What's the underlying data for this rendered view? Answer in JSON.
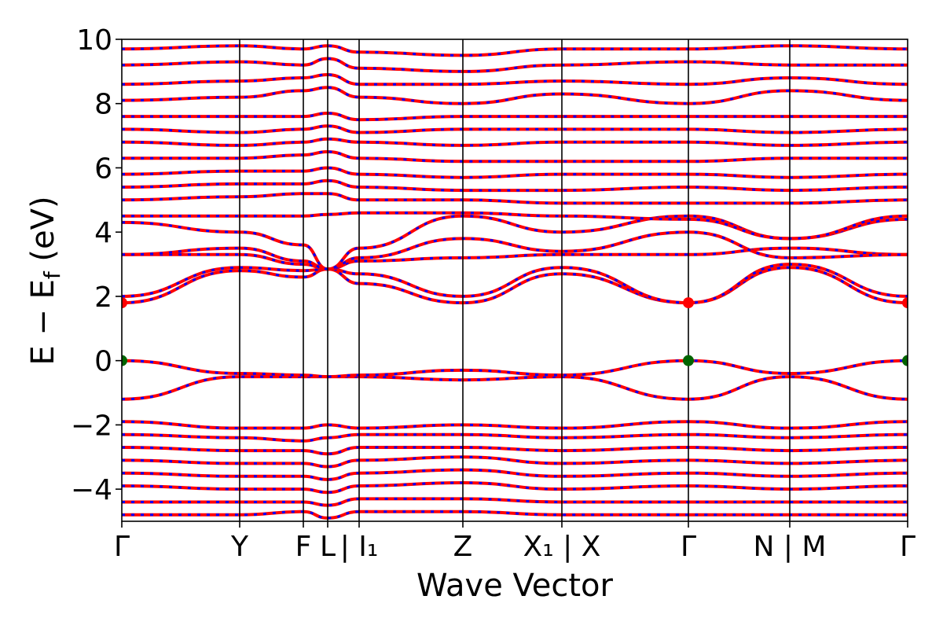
{
  "chart_data": {
    "type": "line",
    "title": "",
    "xlabel": "Wave Vector",
    "ylabel": "E − Ef",
    "ylabel_parts": {
      "main": "E − E",
      "sub": "f",
      "unit": " (eV)"
    },
    "ylim": [
      -5,
      10
    ],
    "y_ticks": [
      -4,
      -2,
      0,
      2,
      4,
      6,
      8,
      10
    ],
    "y_tick_labels": [
      "−4",
      "−2",
      "0",
      "2",
      "4",
      "6",
      "8",
      "10"
    ],
    "xlim": [
      0,
      1
    ],
    "k_points": [
      {
        "x": 0.0,
        "label": "Γ"
      },
      {
        "x": 0.15,
        "label": "Y"
      },
      {
        "x": 0.231,
        "label": "F"
      },
      {
        "x": 0.262,
        "label": "L"
      },
      {
        "x": 0.302,
        "label": "| I₁"
      },
      {
        "x": 0.434,
        "label": "Z"
      },
      {
        "x": 0.56,
        "label": "X₁ | X"
      },
      {
        "x": 0.721,
        "label": "Γ"
      },
      {
        "x": 0.85,
        "label": "N | M"
      },
      {
        "x": 1.0,
        "label": "Γ"
      }
    ],
    "grid": false,
    "legend": "none",
    "series_colors": {
      "primary": "#ff0000",
      "secondary": "#0000ff"
    },
    "vbm": {
      "energy": 0.0,
      "color": "#006400",
      "x": [
        0.0,
        0.721,
        1.0
      ]
    },
    "cbm": {
      "energy": 1.8,
      "color": "#ff0000",
      "x": [
        0.0,
        0.721,
        1.0
      ]
    },
    "bands": [
      {
        "x": [
          0,
          0.15,
          0.231,
          0.262,
          0.302,
          0.434,
          0.56,
          0.721,
          0.85,
          1.0
        ],
        "y": [
          -1.2,
          -0.5,
          -0.5,
          -0.5,
          -0.5,
          -0.6,
          -0.5,
          -1.2,
          -0.5,
          -1.2
        ]
      },
      {
        "x": [
          0,
          0.15,
          0.231,
          0.262,
          0.302,
          0.434,
          0.56,
          0.721,
          0.85,
          1.0
        ],
        "y": [
          0.0,
          -0.4,
          -0.45,
          -0.5,
          -0.45,
          -0.3,
          -0.45,
          0.0,
          -0.4,
          0.0
        ]
      },
      {
        "x": [
          0,
          0.15,
          0.231,
          0.262,
          0.302,
          0.434,
          0.56,
          0.721,
          0.85,
          1.0
        ],
        "y": [
          1.8,
          2.8,
          2.6,
          2.85,
          2.4,
          1.8,
          2.7,
          1.8,
          2.9,
          1.8
        ]
      },
      {
        "x": [
          0,
          0.15,
          0.231,
          0.262,
          0.302,
          0.434,
          0.56,
          0.721,
          0.85,
          1.0
        ],
        "y": [
          2.0,
          2.9,
          2.8,
          2.85,
          2.7,
          2.0,
          2.9,
          1.8,
          3.0,
          2.0
        ]
      },
      {
        "x": [
          0,
          0.15,
          0.231,
          0.262,
          0.302,
          0.434,
          0.56,
          0.721,
          0.85,
          1.0
        ],
        "y": [
          3.3,
          3.3,
          3.0,
          2.85,
          3.1,
          3.2,
          3.3,
          3.3,
          3.5,
          3.3
        ]
      },
      {
        "x": [
          0,
          0.15,
          0.231,
          0.262,
          0.302,
          0.434,
          0.56,
          0.721,
          0.85,
          1.0
        ],
        "y": [
          3.3,
          3.5,
          3.1,
          2.85,
          3.2,
          3.8,
          3.4,
          4.0,
          3.2,
          3.3
        ]
      },
      {
        "x": [
          0,
          0.15,
          0.231,
          0.262,
          0.302,
          0.434,
          0.56,
          0.721,
          0.85,
          1.0
        ],
        "y": [
          4.3,
          4.0,
          3.6,
          2.85,
          3.5,
          4.5,
          4.0,
          4.5,
          3.8,
          4.4
        ]
      },
      {
        "x": [
          0,
          0.15,
          0.231,
          0.262,
          0.302,
          0.434,
          0.56,
          0.721,
          0.85,
          1.0
        ],
        "y": [
          4.5,
          4.5,
          4.5,
          4.55,
          4.6,
          4.6,
          4.5,
          4.4,
          3.8,
          4.5
        ]
      },
      {
        "x": [
          0,
          0.15,
          0.231,
          0.262,
          0.302,
          0.434,
          0.56,
          0.721,
          0.85,
          1.0
        ],
        "y": [
          5.0,
          5.1,
          5.2,
          5.2,
          5.0,
          5.0,
          4.9,
          4.9,
          4.9,
          5.0
        ]
      },
      {
        "x": [
          0,
          0.15,
          0.231,
          0.262,
          0.302,
          0.434,
          0.56,
          0.721,
          0.85,
          1.0
        ],
        "y": [
          5.4,
          5.5,
          5.5,
          5.6,
          5.4,
          5.3,
          5.3,
          5.4,
          5.3,
          5.4
        ]
      },
      {
        "x": [
          0,
          0.15,
          0.231,
          0.262,
          0.302,
          0.434,
          0.56,
          0.721,
          0.85,
          1.0
        ],
        "y": [
          5.8,
          5.9,
          5.9,
          6.0,
          5.8,
          5.7,
          5.8,
          5.8,
          5.7,
          5.8
        ]
      },
      {
        "x": [
          0,
          0.15,
          0.231,
          0.262,
          0.302,
          0.434,
          0.56,
          0.721,
          0.85,
          1.0
        ],
        "y": [
          6.3,
          6.3,
          6.4,
          6.5,
          6.3,
          6.2,
          6.2,
          6.2,
          6.3,
          6.3
        ]
      },
      {
        "x": [
          0,
          0.15,
          0.231,
          0.262,
          0.302,
          0.434,
          0.56,
          0.721,
          0.85,
          1.0
        ],
        "y": [
          6.8,
          6.7,
          6.8,
          6.9,
          6.8,
          6.7,
          6.8,
          6.8,
          6.7,
          6.8
        ]
      },
      {
        "x": [
          0,
          0.15,
          0.231,
          0.262,
          0.302,
          0.434,
          0.56,
          0.721,
          0.85,
          1.0
        ],
        "y": [
          7.2,
          7.1,
          7.2,
          7.3,
          7.1,
          7.2,
          7.2,
          7.2,
          7.1,
          7.2
        ]
      },
      {
        "x": [
          0,
          0.15,
          0.231,
          0.262,
          0.302,
          0.434,
          0.56,
          0.721,
          0.85,
          1.0
        ],
        "y": [
          7.6,
          7.6,
          7.6,
          7.7,
          7.5,
          7.6,
          7.6,
          7.6,
          7.6,
          7.6
        ]
      },
      {
        "x": [
          0,
          0.15,
          0.231,
          0.262,
          0.302,
          0.434,
          0.56,
          0.721,
          0.85,
          1.0
        ],
        "y": [
          8.1,
          8.2,
          8.4,
          8.5,
          8.2,
          8.0,
          8.3,
          8.0,
          8.4,
          8.1
        ]
      },
      {
        "x": [
          0,
          0.15,
          0.231,
          0.262,
          0.302,
          0.434,
          0.56,
          0.721,
          0.85,
          1.0
        ],
        "y": [
          8.6,
          8.7,
          8.8,
          8.9,
          8.6,
          8.6,
          8.7,
          8.6,
          8.8,
          8.6
        ]
      },
      {
        "x": [
          0,
          0.15,
          0.231,
          0.262,
          0.302,
          0.434,
          0.56,
          0.721,
          0.85,
          1.0
        ],
        "y": [
          9.2,
          9.3,
          9.2,
          9.4,
          9.1,
          9.0,
          9.2,
          9.3,
          9.2,
          9.2
        ]
      },
      {
        "x": [
          0,
          0.15,
          0.231,
          0.262,
          0.302,
          0.434,
          0.56,
          0.721,
          0.85,
          1.0
        ],
        "y": [
          9.7,
          9.8,
          9.7,
          9.8,
          9.6,
          9.5,
          9.7,
          9.7,
          9.8,
          9.7
        ]
      },
      {
        "x": [
          0,
          0.15,
          0.231,
          0.262,
          0.302,
          0.434,
          0.56,
          0.721,
          0.85,
          1.0
        ],
        "y": [
          -1.9,
          -2.1,
          -2.1,
          -2.0,
          -2.1,
          -2.0,
          -2.1,
          -1.9,
          -2.1,
          -1.9
        ]
      },
      {
        "x": [
          0,
          0.15,
          0.231,
          0.262,
          0.302,
          0.434,
          0.56,
          0.721,
          0.85,
          1.0
        ],
        "y": [
          -2.3,
          -2.4,
          -2.5,
          -2.4,
          -2.3,
          -2.3,
          -2.4,
          -2.3,
          -2.4,
          -2.3
        ]
      },
      {
        "x": [
          0,
          0.15,
          0.231,
          0.262,
          0.302,
          0.434,
          0.56,
          0.721,
          0.85,
          1.0
        ],
        "y": [
          -2.7,
          -2.8,
          -2.8,
          -2.9,
          -2.7,
          -2.7,
          -2.8,
          -2.7,
          -2.8,
          -2.7
        ]
      },
      {
        "x": [
          0,
          0.15,
          0.231,
          0.262,
          0.302,
          0.434,
          0.56,
          0.721,
          0.85,
          1.0
        ],
        "y": [
          -3.1,
          -3.2,
          -3.2,
          -3.3,
          -3.1,
          -3.0,
          -3.2,
          -3.1,
          -3.2,
          -3.1
        ]
      },
      {
        "x": [
          0,
          0.15,
          0.231,
          0.262,
          0.302,
          0.434,
          0.56,
          0.721,
          0.85,
          1.0
        ],
        "y": [
          -3.5,
          -3.6,
          -3.6,
          -3.7,
          -3.5,
          -3.4,
          -3.6,
          -3.5,
          -3.6,
          -3.5
        ]
      },
      {
        "x": [
          0,
          0.15,
          0.231,
          0.262,
          0.302,
          0.434,
          0.56,
          0.721,
          0.85,
          1.0
        ],
        "y": [
          -3.9,
          -4.0,
          -4.0,
          -4.1,
          -3.9,
          -3.8,
          -4.0,
          -3.9,
          -4.0,
          -3.9
        ]
      },
      {
        "x": [
          0,
          0.15,
          0.231,
          0.262,
          0.302,
          0.434,
          0.56,
          0.721,
          0.85,
          1.0
        ],
        "y": [
          -4.4,
          -4.4,
          -4.4,
          -4.5,
          -4.3,
          -4.3,
          -4.4,
          -4.4,
          -4.4,
          -4.4
        ]
      },
      {
        "x": [
          0,
          0.15,
          0.231,
          0.262,
          0.302,
          0.434,
          0.56,
          0.721,
          0.85,
          1.0
        ],
        "y": [
          -4.8,
          -4.8,
          -4.7,
          -4.9,
          -4.7,
          -4.7,
          -4.8,
          -4.8,
          -4.8,
          -4.8
        ]
      }
    ]
  }
}
